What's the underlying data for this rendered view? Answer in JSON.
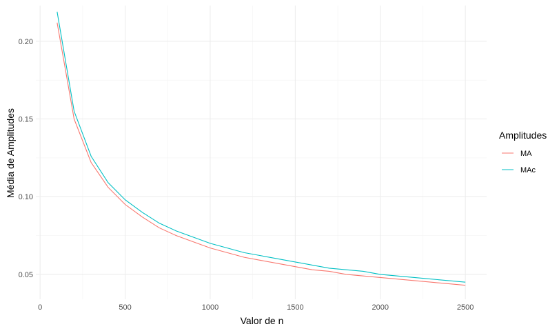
{
  "chart_data": {
    "type": "line",
    "xlabel": "Valor de n",
    "ylabel": "Média de Amplitudes",
    "xlim": [
      -25,
      2625
    ],
    "ylim": [
      0.034,
      0.223
    ],
    "x_ticks": [
      0,
      500,
      1000,
      1500,
      2000,
      2500
    ],
    "x_tick_labels": [
      "0",
      "500",
      "1000",
      "1500",
      "2000",
      "2500"
    ],
    "y_ticks": [
      0.05,
      0.1,
      0.15,
      0.2
    ],
    "y_tick_labels": [
      "0.05",
      "0.10",
      "0.15",
      "0.20"
    ],
    "grid": true,
    "legend": {
      "title": "Amplitudes",
      "placement": "right"
    },
    "x": [
      100,
      200,
      300,
      400,
      500,
      600,
      700,
      800,
      900,
      1000,
      1100,
      1200,
      1300,
      1400,
      1500,
      1600,
      1700,
      1800,
      1900,
      2000,
      2100,
      2200,
      2300,
      2400,
      2500
    ],
    "series": [
      {
        "name": "MA",
        "color": "#F8766D",
        "values": [
          0.212,
          0.15,
          0.122,
          0.106,
          0.095,
          0.087,
          0.08,
          0.075,
          0.071,
          0.067,
          0.064,
          0.061,
          0.059,
          0.057,
          0.055,
          0.053,
          0.052,
          0.05,
          0.049,
          0.048,
          0.047,
          0.046,
          0.045,
          0.044,
          0.043
        ]
      },
      {
        "name": "MAc",
        "color": "#00BFC4",
        "values": [
          0.219,
          0.155,
          0.126,
          0.109,
          0.098,
          0.09,
          0.083,
          0.078,
          0.074,
          0.07,
          0.067,
          0.064,
          0.062,
          0.06,
          0.058,
          0.056,
          0.054,
          0.053,
          0.052,
          0.05,
          0.049,
          0.048,
          0.047,
          0.046,
          0.045
        ]
      }
    ]
  }
}
